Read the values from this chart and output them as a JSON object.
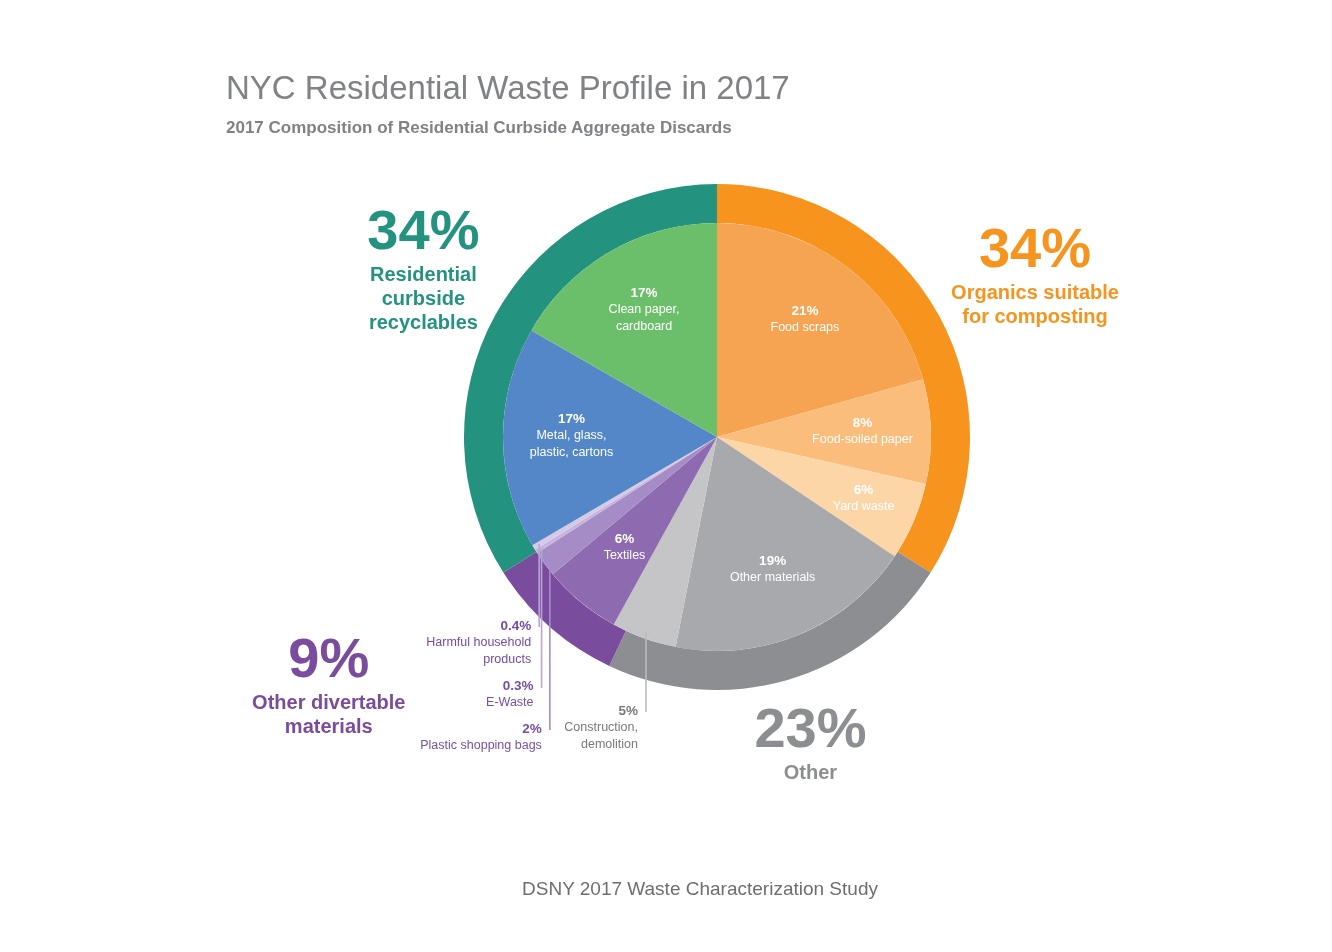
{
  "chart_data": [
    {
      "type": "donut",
      "title": "NYC Residential Waste Profile in 2017",
      "subtitle": "2017 Composition of Residential Curbside Aggregate Discards",
      "categories": [
        "Organics suitable for composting",
        "Other",
        "Other divertable materials",
        "Residential curbside recyclables"
      ],
      "values": [
        34,
        23,
        9,
        34
      ],
      "value_labels": [
        "34%",
        "23%",
        "9%",
        "34%"
      ],
      "colors": [
        "#f7941d",
        "#8d8e91",
        "#7a4c9e",
        "#23937f"
      ],
      "annotations": [
        "DSNY 2017 Waste Characterization Study"
      ]
    },
    {
      "type": "pie",
      "categories": [
        "Food scraps",
        "Food-soiled paper",
        "Yard waste",
        "Other materials",
        "Construction, demolition",
        "Textiles",
        "Plastic shopping bags",
        "E-Waste",
        "Harmful household products",
        "Metal, glass, plastic, cartons",
        "Clean paper, cardboard"
      ],
      "values": [
        21,
        8,
        6,
        19,
        5,
        6,
        2,
        0.3,
        0.4,
        17,
        17
      ],
      "value_labels": [
        "21%",
        "8%",
        "6%",
        "19%",
        "5%",
        "6%",
        "2%",
        "0.3%",
        "0.4%",
        "17%",
        "17%"
      ],
      "colors": [
        "#f6a452",
        "#fbbd7c",
        "#fdd6a8",
        "#a7a9ac",
        "#c5c5c7",
        "#8e6bb0",
        "#a68cc6",
        "#c5b5dc",
        "#d6cae7",
        "#5387c7",
        "#6cbf6a"
      ]
    }
  ]
}
